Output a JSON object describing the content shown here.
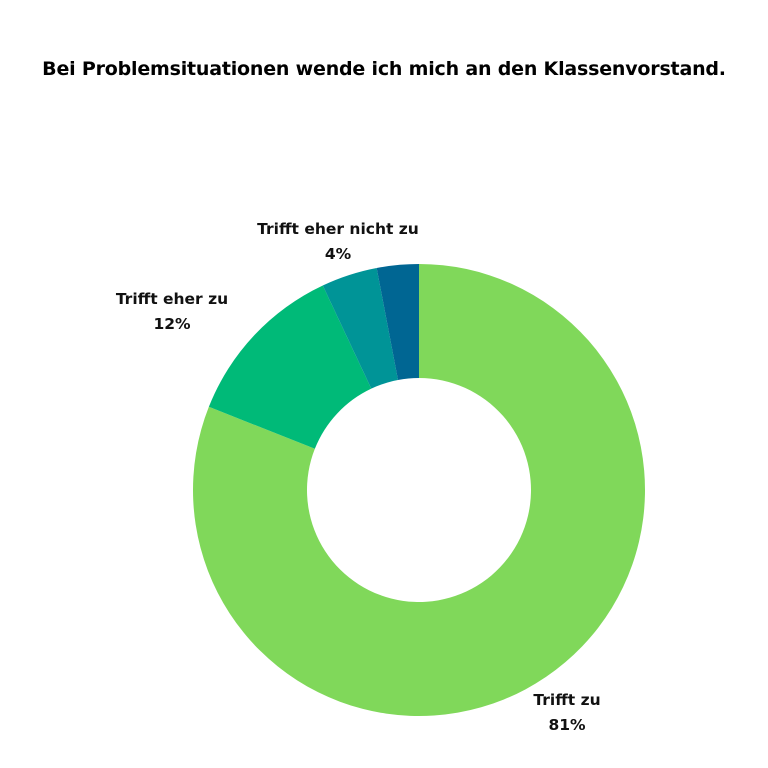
{
  "chart_data": {
    "type": "pie",
    "title": "Bei Problemsituationen wende ich mich an den Klassenvorstand.",
    "donut": true,
    "slices": [
      {
        "label": "Trifft zu",
        "value": 81,
        "value_label": "81%",
        "color": "#80D85A"
      },
      {
        "label": "Trifft eher zu",
        "value": 12,
        "value_label": "12%",
        "color": "#00BA78"
      },
      {
        "label": "Trifft eher nicht zu",
        "value": 4,
        "value_label": "4%",
        "color": "#009497"
      },
      {
        "label": "",
        "value": 3,
        "value_label": "",
        "color": "#006693"
      }
    ]
  }
}
